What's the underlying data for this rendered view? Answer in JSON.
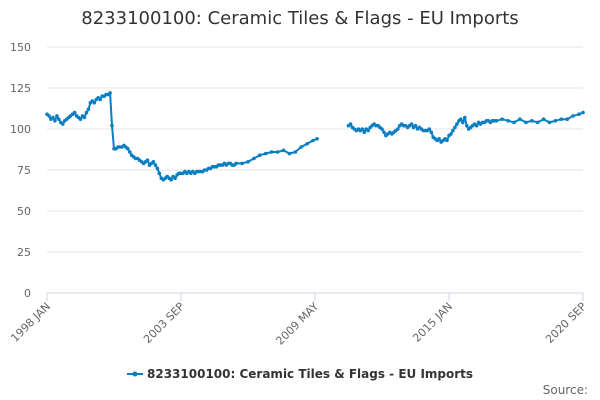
{
  "chart_data": {
    "type": "line",
    "title": "8233100100: Ceramic Tiles & Flags - EU Imports",
    "xlabel": "",
    "ylabel": "",
    "ylim": [
      0,
      150
    ],
    "yticks": [
      0,
      25,
      50,
      75,
      100,
      125,
      150
    ],
    "xticks": [
      "1998 JAN",
      "2003 SEP",
      "2009 MAY",
      "2015 JAN",
      "2020 SEP"
    ],
    "grid": "horizontal",
    "legend_placement": "bottom-center",
    "color": "#0a7ec2",
    "source_label": "Source:",
    "series": [
      {
        "name": "8233100100: Ceramic Tiles & Flags - EU Imports",
        "segments": [
          {
            "x": [
              "1998-01",
              "1998-02",
              "1998-03",
              "1998-04",
              "1998-05",
              "1998-06",
              "1998-07",
              "1998-08",
              "1998-09",
              "1998-10",
              "1998-11",
              "1998-12",
              "1999-01",
              "1999-02",
              "1999-03",
              "1999-04",
              "1999-05",
              "1999-06",
              "1999-07",
              "1999-08",
              "1999-09",
              "1999-10",
              "1999-11",
              "1999-12",
              "2000-01",
              "2000-02",
              "2000-03",
              "2000-04",
              "2000-05",
              "2000-06",
              "2000-07",
              "2000-08",
              "2000-09",
              "2000-10",
              "2000-11",
              "2000-12",
              "2001-01",
              "2001-02",
              "2001-03",
              "2001-04",
              "2001-05",
              "2001-06",
              "2001-07",
              "2001-08",
              "2001-09",
              "2001-10",
              "2001-11",
              "2001-12",
              "2002-01",
              "2002-02",
              "2002-03",
              "2002-04",
              "2002-05",
              "2002-06",
              "2002-07",
              "2002-08",
              "2002-09",
              "2002-10",
              "2002-11",
              "2002-12",
              "2003-01",
              "2003-02",
              "2003-03",
              "2003-04",
              "2003-05",
              "2003-06",
              "2003-07",
              "2003-08",
              "2003-09",
              "2003-10",
              "2003-11",
              "2003-12",
              "2004-01",
              "2004-02",
              "2004-03",
              "2004-04",
              "2004-05",
              "2004-06",
              "2004-07",
              "2004-08",
              "2004-09",
              "2004-10",
              "2004-11",
              "2004-12",
              "2005-01",
              "2005-02",
              "2005-03",
              "2005-04",
              "2005-05",
              "2005-06",
              "2005-07",
              "2005-08",
              "2005-09",
              "2005-10",
              "2005-11",
              "2005-12",
              "2006-01",
              "2006-04",
              "2006-07",
              "2006-10",
              "2007-01",
              "2007-04",
              "2007-07",
              "2007-10",
              "2008-01",
              "2008-04",
              "2008-07",
              "2008-10",
              "2009-01",
              "2009-04",
              "2009-06"
            ],
            "y": [
              109,
              108,
              106,
              107,
              105,
              108,
              106,
              104,
              103,
              105,
              106,
              107,
              108,
              109,
              110,
              108,
              107,
              106,
              108,
              107,
              110,
              112,
              116,
              117,
              116,
              118,
              119,
              118,
              120,
              120,
              121,
              121,
              122,
              102,
              88,
              88,
              89,
              89,
              89,
              90,
              89,
              88,
              86,
              84,
              83,
              82,
              82,
              81,
              80,
              79,
              80,
              81,
              78,
              79,
              80,
              78,
              76,
              73,
              70,
              69,
              70,
              71,
              70,
              69,
              71,
              70,
              72,
              73,
              73,
              73,
              74,
              73,
              74,
              73,
              74,
              73,
              74,
              74,
              74,
              74,
              75,
              75,
              76,
              76,
              77,
              77,
              77,
              78,
              78,
              78,
              79,
              78,
              79,
              79,
              78,
              78,
              79,
              79,
              80,
              82,
              84,
              85,
              86,
              86,
              87,
              85,
              86,
              89,
              91,
              93,
              94
            ]
          },
          {
            "x": [
              "2010-10",
              "2010-11",
              "2010-12",
              "2011-01",
              "2011-02",
              "2011-03",
              "2011-04",
              "2011-05",
              "2011-06",
              "2011-07",
              "2011-08",
              "2011-09",
              "2011-10",
              "2011-11",
              "2011-12",
              "2012-01",
              "2012-02",
              "2012-03",
              "2012-04",
              "2012-05",
              "2012-06",
              "2012-07",
              "2012-08",
              "2012-09",
              "2012-10",
              "2012-11",
              "2012-12",
              "2013-01",
              "2013-02",
              "2013-03",
              "2013-04",
              "2013-05",
              "2013-06",
              "2013-07",
              "2013-08",
              "2013-09",
              "2013-10",
              "2013-11",
              "2013-12",
              "2014-01",
              "2014-02",
              "2014-03",
              "2014-04",
              "2014-05",
              "2014-06",
              "2014-07",
              "2014-08",
              "2014-09",
              "2014-10",
              "2014-11",
              "2014-12",
              "2015-01",
              "2015-02",
              "2015-03",
              "2015-04",
              "2015-05",
              "2015-06",
              "2015-07",
              "2015-08",
              "2015-09",
              "2015-10",
              "2015-11",
              "2015-12",
              "2016-01",
              "2016-02",
              "2016-03",
              "2016-04",
              "2016-05",
              "2016-06",
              "2016-07",
              "2016-08",
              "2016-09",
              "2016-10",
              "2016-11",
              "2016-12",
              "2017-01",
              "2017-04",
              "2017-07",
              "2017-10",
              "2018-01",
              "2018-04",
              "2018-07",
              "2018-10",
              "2019-01",
              "2019-04",
              "2019-07",
              "2019-10",
              "2020-01",
              "2020-04",
              "2020-07",
              "2020-09"
            ],
            "y": [
              102,
              103,
              101,
              100,
              99,
              100,
              99,
              100,
              98,
              100,
              99,
              101,
              102,
              103,
              102,
              102,
              101,
              100,
              98,
              96,
              97,
              98,
              97,
              98,
              99,
              100,
              102,
              103,
              102,
              102,
              101,
              102,
              103,
              101,
              102,
              100,
              101,
              100,
              99,
              99,
              99,
              100,
              98,
              95,
              94,
              93,
              94,
              92,
              93,
              94,
              93,
              96,
              97,
              99,
              101,
              103,
              105,
              106,
              104,
              107,
              102,
              100,
              101,
              102,
              103,
              102,
              104,
              103,
              104,
              104,
              105,
              105,
              104,
              105,
              105,
              105,
              106,
              105,
              104,
              106,
              104,
              105,
              104,
              106,
              104,
              105,
              106,
              106,
              108,
              109,
              110
            ]
          }
        ]
      }
    ]
  }
}
